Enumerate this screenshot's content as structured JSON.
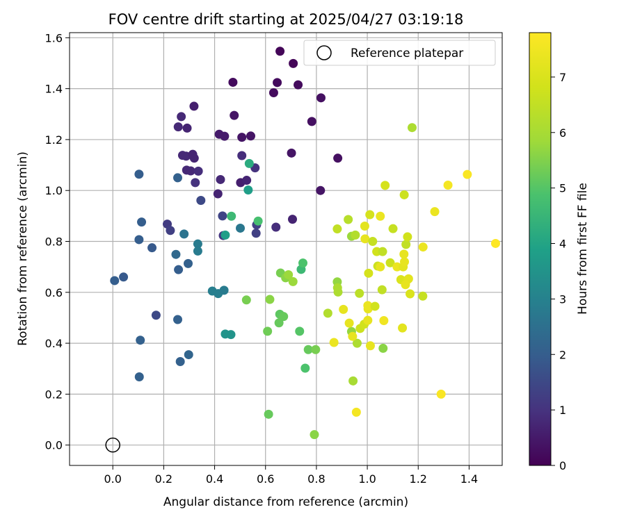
{
  "chart_data": {
    "type": "scatter",
    "title": "FOV centre drift starting at 2025/04/27 03:19:18",
    "xlabel": "Angular distance from reference (arcmin)",
    "ylabel": "Rotation from reference (arcmin)",
    "xlim": [
      -0.17,
      1.53
    ],
    "ylim": [
      -0.08,
      1.62
    ],
    "xticks": [
      0.0,
      0.2,
      0.4,
      0.6,
      0.8,
      1.0,
      1.2,
      1.4
    ],
    "yticks": [
      0.0,
      0.2,
      0.4,
      0.6,
      0.8,
      1.0,
      1.2,
      1.4,
      1.6
    ],
    "x_tick_labels": [
      "0.0",
      "0.2",
      "0.4",
      "0.6",
      "0.8",
      "1.0",
      "1.2",
      "1.4"
    ],
    "y_tick_labels": [
      "0.0",
      "0.2",
      "0.4",
      "0.6",
      "0.8",
      "1.0",
      "1.2",
      "1.4",
      "1.6"
    ],
    "grid": true,
    "legend": {
      "placement": "top-right",
      "entries": [
        "Reference platepar"
      ]
    },
    "reference_point": {
      "x": 0.0,
      "y": 0.0,
      "label": "Reference platepar"
    },
    "colorbar": {
      "label": "Hours from first FF file",
      "range": [
        0,
        7.8
      ],
      "ticks": [
        0,
        1,
        2,
        3,
        4,
        5,
        6,
        7
      ],
      "tick_labels": [
        "0",
        "1",
        "2",
        "3",
        "4",
        "5",
        "6",
        "7"
      ],
      "colormap": "viridis"
    },
    "series": [
      {
        "points": [
          {
            "x": 0.657,
            "y": 1.547,
            "c": 0.1
          },
          {
            "x": 0.709,
            "y": 1.499,
            "c": 0.1
          },
          {
            "x": 0.472,
            "y": 1.425,
            "c": 0.2
          },
          {
            "x": 0.646,
            "y": 1.424,
            "c": 0.2
          },
          {
            "x": 0.728,
            "y": 1.415,
            "c": 0.2
          },
          {
            "x": 0.632,
            "y": 1.384,
            "c": 0.2
          },
          {
            "x": 0.818,
            "y": 1.364,
            "c": 0.3
          },
          {
            "x": 0.319,
            "y": 1.331,
            "c": 0.6
          },
          {
            "x": 0.477,
            "y": 1.295,
            "c": 0.4
          },
          {
            "x": 0.782,
            "y": 1.271,
            "c": 0.3
          },
          {
            "x": 0.269,
            "y": 1.29,
            "c": 0.8
          },
          {
            "x": 0.257,
            "y": 1.25,
            "c": 0.8
          },
          {
            "x": 0.292,
            "y": 1.245,
            "c": 0.7
          },
          {
            "x": 0.418,
            "y": 1.221,
            "c": 0.5
          },
          {
            "x": 0.439,
            "y": 1.213,
            "c": 0.5
          },
          {
            "x": 0.507,
            "y": 1.209,
            "c": 0.4
          },
          {
            "x": 0.542,
            "y": 1.214,
            "c": 0.4
          },
          {
            "x": 0.274,
            "y": 1.138,
            "c": 0.8
          },
          {
            "x": 0.288,
            "y": 1.135,
            "c": 0.8
          },
          {
            "x": 0.314,
            "y": 1.142,
            "c": 0.7
          },
          {
            "x": 0.32,
            "y": 1.127,
            "c": 0.7
          },
          {
            "x": 0.507,
            "y": 1.137,
            "c": 0.9
          },
          {
            "x": 0.702,
            "y": 1.147,
            "c": 0.4
          },
          {
            "x": 0.884,
            "y": 1.127,
            "c": 0.3
          },
          {
            "x": 0.29,
            "y": 1.08,
            "c": 0.8
          },
          {
            "x": 0.306,
            "y": 1.077,
            "c": 0.8
          },
          {
            "x": 0.336,
            "y": 1.076,
            "c": 0.9
          },
          {
            "x": 0.559,
            "y": 1.089,
            "c": 1.0
          },
          {
            "x": 0.423,
            "y": 1.043,
            "c": 0.8
          },
          {
            "x": 0.324,
            "y": 1.031,
            "c": 1.0
          },
          {
            "x": 0.502,
            "y": 1.031,
            "c": 0.6
          },
          {
            "x": 0.526,
            "y": 1.04,
            "c": 0.7
          },
          {
            "x": 0.816,
            "y": 1.0,
            "c": 0.4
          },
          {
            "x": 0.413,
            "y": 0.987,
            "c": 0.7
          },
          {
            "x": 0.346,
            "y": 0.961,
            "c": 1.5
          },
          {
            "x": 0.431,
            "y": 0.9,
            "c": 1.4
          },
          {
            "x": 0.706,
            "y": 0.887,
            "c": 0.7
          },
          {
            "x": 0.641,
            "y": 0.856,
            "c": 0.9
          },
          {
            "x": 0.214,
            "y": 0.868,
            "c": 1.2
          },
          {
            "x": 0.226,
            "y": 0.843,
            "c": 1.3
          },
          {
            "x": 0.434,
            "y": 0.823,
            "c": 1.1
          },
          {
            "x": 0.563,
            "y": 0.832,
            "c": 1.3
          },
          {
            "x": 0.565,
            "y": 0.865,
            "c": 1.3
          },
          {
            "x": 0.103,
            "y": 1.064,
            "c": 2.0
          },
          {
            "x": 0.255,
            "y": 1.05,
            "c": 2.1
          },
          {
            "x": 0.113,
            "y": 0.876,
            "c": 2.0
          },
          {
            "x": 0.103,
            "y": 0.807,
            "c": 2.0
          },
          {
            "x": 0.154,
            "y": 0.775,
            "c": 1.9
          },
          {
            "x": 0.28,
            "y": 0.829,
            "c": 2.6
          },
          {
            "x": 0.248,
            "y": 0.749,
            "c": 2.3
          },
          {
            "x": 0.296,
            "y": 0.713,
            "c": 2.1
          },
          {
            "x": 0.258,
            "y": 0.689,
            "c": 2.0
          },
          {
            "x": 0.334,
            "y": 0.79,
            "c": 2.8
          },
          {
            "x": 0.334,
            "y": 0.762,
            "c": 2.8
          },
          {
            "x": 0.501,
            "y": 0.852,
            "c": 2.7
          },
          {
            "x": 0.007,
            "y": 0.646,
            "c": 2.0
          },
          {
            "x": 0.042,
            "y": 0.66,
            "c": 1.9
          },
          {
            "x": 0.17,
            "y": 0.51,
            "c": 1.5
          },
          {
            "x": 0.255,
            "y": 0.493,
            "c": 2.1
          },
          {
            "x": 0.108,
            "y": 0.412,
            "c": 2.1
          },
          {
            "x": 0.298,
            "y": 0.355,
            "c": 2.2
          },
          {
            "x": 0.265,
            "y": 0.328,
            "c": 2.1
          },
          {
            "x": 0.104,
            "y": 0.268,
            "c": 2.1
          },
          {
            "x": 0.391,
            "y": 0.605,
            "c": 2.9
          },
          {
            "x": 0.414,
            "y": 0.595,
            "c": 2.9
          },
          {
            "x": 0.437,
            "y": 0.608,
            "c": 2.8
          },
          {
            "x": 0.442,
            "y": 0.825,
            "c": 3.8
          },
          {
            "x": 0.466,
            "y": 0.899,
            "c": 4.6
          },
          {
            "x": 0.536,
            "y": 1.106,
            "c": 4.2
          },
          {
            "x": 0.532,
            "y": 1.002,
            "c": 3.8
          },
          {
            "x": 0.571,
            "y": 0.88,
            "c": 4.8
          },
          {
            "x": 0.442,
            "y": 0.436,
            "c": 3.5
          },
          {
            "x": 0.464,
            "y": 0.434,
            "c": 3.5
          },
          {
            "x": 0.525,
            "y": 0.57,
            "c": 5.4
          },
          {
            "x": 0.617,
            "y": 0.572,
            "c": 5.6
          },
          {
            "x": 0.659,
            "y": 0.676,
            "c": 5.4
          },
          {
            "x": 0.679,
            "y": 0.657,
            "c": 5.6
          },
          {
            "x": 0.69,
            "y": 0.669,
            "c": 5.8
          },
          {
            "x": 0.708,
            "y": 0.642,
            "c": 5.8
          },
          {
            "x": 0.74,
            "y": 0.69,
            "c": 4.6
          },
          {
            "x": 0.747,
            "y": 0.715,
            "c": 4.9
          },
          {
            "x": 0.656,
            "y": 0.514,
            "c": 5.1
          },
          {
            "x": 0.671,
            "y": 0.505,
            "c": 5.2
          },
          {
            "x": 0.653,
            "y": 0.48,
            "c": 5.2
          },
          {
            "x": 0.608,
            "y": 0.447,
            "c": 5.3
          },
          {
            "x": 0.734,
            "y": 0.447,
            "c": 5.0
          },
          {
            "x": 0.768,
            "y": 0.375,
            "c": 5.2
          },
          {
            "x": 0.797,
            "y": 0.375,
            "c": 5.4
          },
          {
            "x": 0.756,
            "y": 0.302,
            "c": 4.9
          },
          {
            "x": 0.612,
            "y": 0.121,
            "c": 5.2
          },
          {
            "x": 0.792,
            "y": 0.041,
            "c": 5.6
          },
          {
            "x": 0.845,
            "y": 0.518,
            "c": 6.2
          },
          {
            "x": 0.882,
            "y": 0.641,
            "c": 5.7
          },
          {
            "x": 0.883,
            "y": 0.618,
            "c": 6.1
          },
          {
            "x": 0.885,
            "y": 0.601,
            "c": 6.1
          },
          {
            "x": 0.882,
            "y": 0.849,
            "c": 6.5
          },
          {
            "x": 0.925,
            "y": 0.886,
            "c": 6.3
          },
          {
            "x": 0.938,
            "y": 0.82,
            "c": 5.8
          },
          {
            "x": 0.953,
            "y": 0.825,
            "c": 6.2
          },
          {
            "x": 0.938,
            "y": 0.446,
            "c": 5.7
          },
          {
            "x": 0.96,
            "y": 0.4,
            "c": 6.1
          },
          {
            "x": 0.944,
            "y": 0.252,
            "c": 6.0
          },
          {
            "x": 0.969,
            "y": 0.596,
            "c": 6.4
          },
          {
            "x": 0.972,
            "y": 0.458,
            "c": 6.7
          },
          {
            "x": 0.988,
            "y": 0.475,
            "c": 6.8
          },
          {
            "x": 1.002,
            "y": 0.49,
            "c": 7.3
          },
          {
            "x": 1.005,
            "y": 0.675,
            "c": 6.9
          },
          {
            "x": 1.003,
            "y": 0.535,
            "c": 7.3
          },
          {
            "x": 1.002,
            "y": 0.548,
            "c": 7.4
          },
          {
            "x": 0.991,
            "y": 0.81,
            "c": 7.3
          },
          {
            "x": 0.99,
            "y": 0.86,
            "c": 7.2
          },
          {
            "x": 1.01,
            "y": 0.905,
            "c": 6.9
          },
          {
            "x": 1.021,
            "y": 0.8,
            "c": 6.6
          },
          {
            "x": 1.03,
            "y": 0.545,
            "c": 6.8
          },
          {
            "x": 1.037,
            "y": 0.76,
            "c": 6.8
          },
          {
            "x": 1.041,
            "y": 0.703,
            "c": 6.7
          },
          {
            "x": 1.051,
            "y": 0.7,
            "c": 7.3
          },
          {
            "x": 1.051,
            "y": 0.899,
            "c": 7.4
          },
          {
            "x": 1.058,
            "y": 0.61,
            "c": 6.5
          },
          {
            "x": 1.06,
            "y": 0.76,
            "c": 6.5
          },
          {
            "x": 1.062,
            "y": 0.38,
            "c": 5.6
          },
          {
            "x": 1.065,
            "y": 0.489,
            "c": 7.5
          },
          {
            "x": 1.07,
            "y": 1.02,
            "c": 6.9
          },
          {
            "x": 1.09,
            "y": 0.716,
            "c": 6.7
          },
          {
            "x": 1.101,
            "y": 0.85,
            "c": 6.6
          },
          {
            "x": 1.117,
            "y": 0.7,
            "c": 7.4
          },
          {
            "x": 1.132,
            "y": 0.65,
            "c": 7.0
          },
          {
            "x": 1.138,
            "y": 0.46,
            "c": 7.2
          },
          {
            "x": 1.141,
            "y": 0.7,
            "c": 7.2
          },
          {
            "x": 1.144,
            "y": 0.75,
            "c": 7.3
          },
          {
            "x": 1.145,
            "y": 0.983,
            "c": 6.7
          },
          {
            "x": 1.146,
            "y": 0.72,
            "c": 7.3
          },
          {
            "x": 1.152,
            "y": 0.788,
            "c": 6.5
          },
          {
            "x": 1.156,
            "y": 0.648,
            "c": 7.1
          },
          {
            "x": 1.158,
            "y": 0.818,
            "c": 6.8
          },
          {
            "x": 1.162,
            "y": 0.653,
            "c": 7.2
          },
          {
            "x": 1.15,
            "y": 0.63,
            "c": 7.3
          },
          {
            "x": 1.168,
            "y": 0.594,
            "c": 7.0
          },
          {
            "x": 1.176,
            "y": 1.247,
            "c": 6.1
          },
          {
            "x": 1.218,
            "y": 0.585,
            "c": 6.6
          },
          {
            "x": 1.219,
            "y": 0.778,
            "c": 7.4
          },
          {
            "x": 1.265,
            "y": 0.917,
            "c": 7.4
          },
          {
            "x": 1.29,
            "y": 0.2,
            "c": 7.7
          },
          {
            "x": 1.317,
            "y": 1.021,
            "c": 7.6
          },
          {
            "x": 1.393,
            "y": 1.063,
            "c": 7.7
          },
          {
            "x": 1.504,
            "y": 0.792,
            "c": 7.8
          },
          {
            "x": 0.906,
            "y": 0.533,
            "c": 7.3
          },
          {
            "x": 0.929,
            "y": 0.479,
            "c": 7.3
          },
          {
            "x": 0.942,
            "y": 0.427,
            "c": 7.3
          },
          {
            "x": 0.869,
            "y": 0.403,
            "c": 7.4
          },
          {
            "x": 0.957,
            "y": 0.129,
            "c": 7.6
          },
          {
            "x": 1.012,
            "y": 0.39,
            "c": 7.3
          }
        ]
      }
    ]
  }
}
